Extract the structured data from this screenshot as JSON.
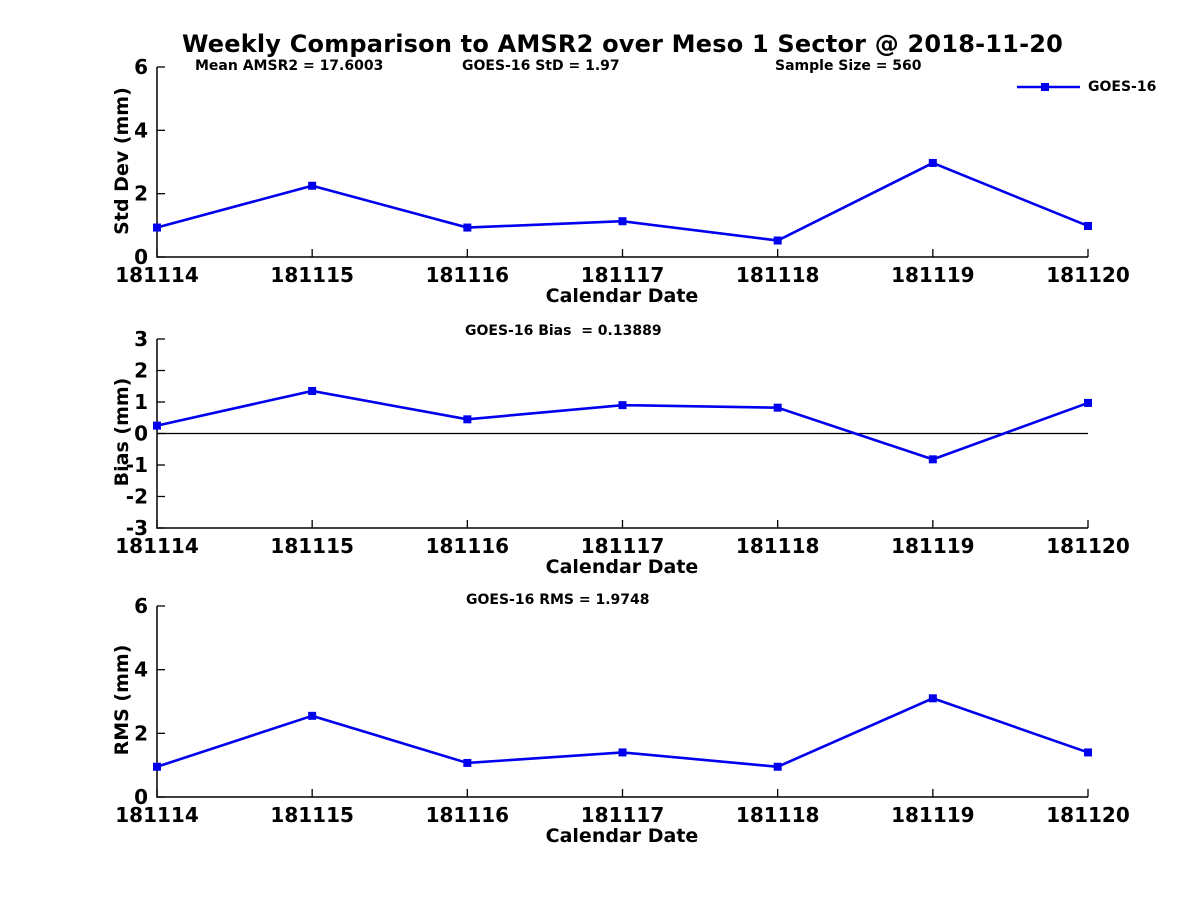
{
  "figure_title": "Weekly Comparison to AMSR2 over Meso 1 Sector @ 2018-11-20",
  "colors": {
    "series": "#0000EE",
    "axis": "#000000"
  },
  "chart_data": [
    {
      "id": "stddev",
      "type": "line",
      "title": "",
      "annotations": [
        "Mean AMSR2 = 17.6003",
        "GOES-16 StD = 1.97",
        "Sample Size = 560"
      ],
      "legend": {
        "label": "GOES-16",
        "position": "top-right",
        "box": false
      },
      "categories": [
        "181114",
        "181115",
        "181116",
        "181117",
        "181118",
        "181119",
        "181120"
      ],
      "series": [
        {
          "name": "GOES-16",
          "values": [
            0.93,
            2.25,
            0.93,
            1.13,
            0.52,
            2.97,
            0.98
          ]
        }
      ],
      "xlabel": "Calendar Date",
      "ylabel": "Std Dev (mm)",
      "ylim": [
        0,
        6
      ],
      "yticks": [
        0,
        2,
        4,
        6
      ],
      "grid": false,
      "zero_line": false
    },
    {
      "id": "bias",
      "type": "line",
      "title": "GOES-16 Bias  = 0.13889",
      "categories": [
        "181114",
        "181115",
        "181116",
        "181117",
        "181118",
        "181119",
        "181120"
      ],
      "series": [
        {
          "name": "GOES-16",
          "values": [
            0.25,
            1.35,
            0.45,
            0.9,
            0.82,
            -0.82,
            0.97
          ]
        }
      ],
      "xlabel": "Calendar Date",
      "ylabel": "Bias (mm)",
      "ylim": [
        -3,
        3
      ],
      "yticks": [
        -3,
        -2,
        -1,
        0,
        1,
        2,
        3
      ],
      "grid": false,
      "zero_line": true
    },
    {
      "id": "rms",
      "type": "line",
      "title": "GOES-16 RMS = 1.9748",
      "categories": [
        "181114",
        "181115",
        "181116",
        "181117",
        "181118",
        "181119",
        "181120"
      ],
      "series": [
        {
          "name": "GOES-16",
          "values": [
            0.95,
            2.55,
            1.07,
            1.4,
            0.95,
            3.1,
            1.4
          ]
        }
      ],
      "xlabel": "Calendar Date",
      "ylabel": "RMS (mm)",
      "ylim": [
        0,
        6
      ],
      "yticks": [
        0,
        2,
        4,
        6
      ],
      "grid": false,
      "zero_line": false
    }
  ]
}
